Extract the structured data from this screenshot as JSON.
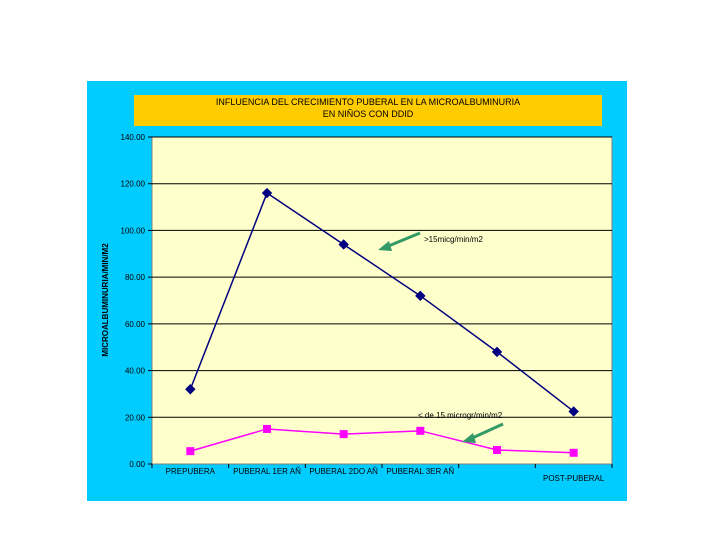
{
  "chart_data": {
    "type": "line",
    "title_lines": [
      "INFLUENCIA DEL CRECIMIENTO PUBERAL EN LA MICROALBUMINURIA",
      "EN NIÑOS CON DDID"
    ],
    "ylabel": "MICROALBUMINURIA/MIN/M2",
    "categories": [
      "PREPUBERA",
      "PUBERAL 1ER AÑ",
      "PUBERAL 2DO AÑ",
      "PUBERAL 3ER AÑ",
      "",
      "POST-PUBERAL"
    ],
    "ylim": [
      0,
      140
    ],
    "yticks": [
      "0.00",
      "20.00",
      "40.00",
      "60.00",
      "80.00",
      "100.00",
      "120.00",
      "140.00"
    ],
    "grid": true,
    "series": [
      {
        "values": [
          32,
          116,
          94,
          72,
          48,
          22.5
        ],
        "color": "#000080",
        "marker": "diamond"
      },
      {
        "values": [
          5.5,
          15,
          12.8,
          14.2,
          6,
          4.8
        ],
        "color": "#ff00ff",
        "marker": "square"
      }
    ],
    "annotations": [
      {
        "text": ">15micg/min/m2",
        "arrow_color": "#339966"
      },
      {
        "text": "< de 15 microgr/min/m2",
        "arrow_color": "#339966"
      }
    ]
  },
  "colors": {
    "frame_bg": "#00ccff",
    "plot_bg": "#ffffcc",
    "title_bg": "#ffcc00"
  }
}
